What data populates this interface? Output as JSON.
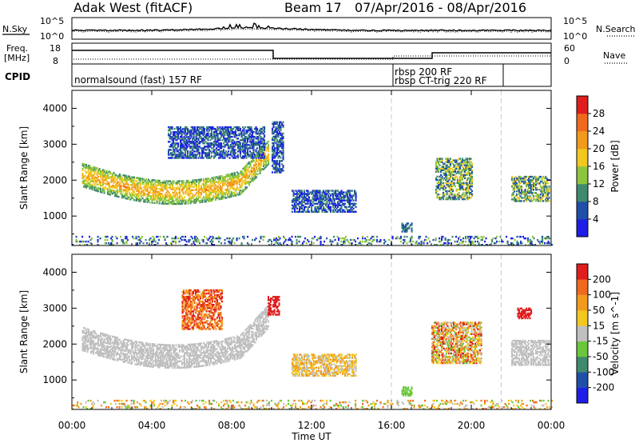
{
  "header": {
    "station": "Adak West (fitACF)",
    "beam": "Beam 17",
    "date_range": "07/Apr/2016 - 08/Apr/2016"
  },
  "summary": {
    "nsky_label": "N.Sky",
    "nsearch_label": "N.Search",
    "noise_ticks": [
      "10^5",
      "10^0"
    ],
    "freq_label": "Freq.",
    "freq_unit": "[MHz]",
    "freq_ticks": [
      "18",
      "8"
    ],
    "nave_label": "Nave",
    "nave_ticks": [
      "60",
      "0"
    ],
    "cpid_label": "CPID",
    "cpid_entries": [
      {
        "text": "normalsound (fast) 157 RF",
        "start_hr": 0.0
      },
      {
        "text": "rbsp 200 RF",
        "start_hr": 16.0
      },
      {
        "text": "rbsp CT-trig 220 RF",
        "start_hr": 16.0
      }
    ],
    "cpid_boundaries_hr": [
      16.0,
      21.5
    ]
  },
  "chart_data": [
    {
      "type": "heatmap",
      "parameter": "Power",
      "colorbar_label": "Power [dB]",
      "colorbar_ticks": [
        "28",
        "24",
        "20",
        "16",
        "12",
        "8",
        "4"
      ],
      "colors": [
        "#1e1ee6",
        "#1f4fa8",
        "#3f8a6e",
        "#8cc63c",
        "#f2c81e",
        "#f29a1e",
        "#f06a1e",
        "#e01e1e"
      ],
      "ylabel": "Slant Range [km]",
      "ylim": [
        180,
        4500
      ],
      "yticks": [
        1000,
        2000,
        3000,
        4000
      ],
      "xlim_hr": [
        0,
        24
      ],
      "regions": [
        {
          "t0": 0.5,
          "t1": 9.8,
          "r0": 1350,
          "r1": 2600,
          "arc": true,
          "lvl": [
            2,
            4
          ]
        },
        {
          "t0": 4.8,
          "t1": 9.6,
          "r0": 2600,
          "r1": 3500,
          "arc": false,
          "lvl": [
            0,
            2
          ]
        },
        {
          "t0": 10.0,
          "t1": 10.6,
          "r0": 2200,
          "r1": 3600,
          "arc": false,
          "lvl": [
            0,
            2
          ]
        },
        {
          "t0": 11.0,
          "t1": 14.2,
          "r0": 1100,
          "r1": 1700,
          "arc": false,
          "lvl": [
            0,
            2
          ]
        },
        {
          "t0": 16.5,
          "t1": 17.0,
          "r0": 550,
          "r1": 800,
          "arc": false,
          "lvl": [
            1,
            2
          ]
        },
        {
          "t0": 18.2,
          "t1": 20.0,
          "r0": 1450,
          "r1": 2600,
          "arc": false,
          "lvl": [
            1,
            4
          ]
        },
        {
          "t0": 22.0,
          "t1": 23.9,
          "r0": 1400,
          "r1": 2100,
          "arc": false,
          "lvl": [
            1,
            4
          ]
        },
        {
          "t0": 0.0,
          "t1": 24.0,
          "r0": 180,
          "r1": 420,
          "arc": false,
          "lvl": [
            0,
            3
          ]
        }
      ]
    },
    {
      "type": "heatmap",
      "parameter": "Velocity",
      "colorbar_label": "Velocity [m s^-1]",
      "colorbar_ticks": [
        "200",
        "100",
        "50",
        "15",
        "-15",
        "-50",
        "-100",
        "-200"
      ],
      "colors": [
        "#1e1ee6",
        "#1f4fa8",
        "#3f8a6e",
        "#6cc63c",
        "#c0c0c0",
        "#f2c81e",
        "#f29a1e",
        "#f06a1e",
        "#e01e1e"
      ],
      "ylabel": "Slant Range [km]",
      "ylim": [
        180,
        4500
      ],
      "yticks": [
        1000,
        2000,
        3000,
        4000
      ],
      "xlabel": "Time UT",
      "xticks": [
        "00:00",
        "04:00",
        "08:00",
        "12:00",
        "16:00",
        "20:00",
        "00:00"
      ],
      "xlim_hr": [
        0,
        24
      ],
      "regions": [
        {
          "t0": 0.5,
          "t1": 9.8,
          "r0": 1350,
          "r1": 2600,
          "arc": true,
          "lvl": [
            4,
            4
          ]
        },
        {
          "t0": 5.5,
          "t1": 7.5,
          "r0": 2400,
          "r1": 3500,
          "arc": false,
          "lvl": [
            6,
            8
          ]
        },
        {
          "t0": 9.8,
          "t1": 10.4,
          "r0": 2800,
          "r1": 3300,
          "arc": false,
          "lvl": [
            8,
            8
          ]
        },
        {
          "t0": 11.0,
          "t1": 14.2,
          "r0": 1100,
          "r1": 1700,
          "arc": false,
          "lvl": [
            4,
            6
          ]
        },
        {
          "t0": 16.5,
          "t1": 17.0,
          "r0": 550,
          "r1": 800,
          "arc": false,
          "lvl": [
            3,
            3
          ]
        },
        {
          "t0": 18.0,
          "t1": 20.5,
          "r0": 1450,
          "r1": 2600,
          "arc": false,
          "lvl": [
            3,
            8
          ]
        },
        {
          "t0": 22.0,
          "t1": 23.9,
          "r0": 1400,
          "r1": 2100,
          "arc": false,
          "lvl": [
            4,
            4
          ]
        },
        {
          "t0": 22.3,
          "t1": 23.0,
          "r0": 2700,
          "r1": 3000,
          "arc": false,
          "lvl": [
            8,
            8
          ]
        },
        {
          "t0": 0.0,
          "t1": 24.0,
          "r0": 180,
          "r1": 420,
          "arc": false,
          "lvl": [
            3,
            7
          ]
        }
      ]
    }
  ]
}
